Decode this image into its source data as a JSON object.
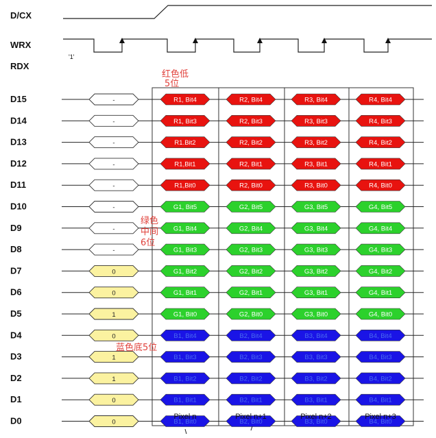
{
  "signals": {
    "dcx": "D/CX",
    "wrx": "WRX",
    "rdx": "RDX",
    "wrx_initial": "'1'"
  },
  "rows": [
    {
      "label": "D15",
      "lead": "-",
      "cells": [
        "R1, Bit4",
        "R2, Bit4",
        "R3, Bit4",
        "R4, Bit4"
      ],
      "color": "red"
    },
    {
      "label": "D14",
      "lead": "-",
      "cells": [
        "R1, Bit3",
        "R2, Bit3",
        "R3, Bit3",
        "R4, Bit3"
      ],
      "color": "red"
    },
    {
      "label": "D13",
      "lead": "-",
      "cells": [
        "R1.Bit2",
        "R2, Bit2",
        "R3, Bit2",
        "R4, Bit2"
      ],
      "color": "red"
    },
    {
      "label": "D12",
      "lead": "-",
      "cells": [
        "R1,Bit1",
        "R2, Bit1",
        "R3, Bit1",
        "R4, Bit1"
      ],
      "color": "red"
    },
    {
      "label": "D11",
      "lead": "-",
      "cells": [
        "R1,Bit0",
        "R2, Bit0",
        "R3, Bit0",
        "R4, Bit0"
      ],
      "color": "red"
    },
    {
      "label": "D10",
      "lead": "-",
      "cells": [
        "G1, Bit5",
        "G2, Bit5",
        "G3, Bit5",
        "G4, Bit5"
      ],
      "color": "green"
    },
    {
      "label": "D9",
      "lead": "-",
      "cells": [
        "G1, Bit4",
        "G2, Bit4",
        "G3, Bit4",
        "G4, Bit4"
      ],
      "color": "green"
    },
    {
      "label": "D8",
      "lead": "-",
      "cells": [
        "G1, Bit3",
        "G2, Bit3",
        "G3, Bit3",
        "G4, Bit3"
      ],
      "color": "green"
    },
    {
      "label": "D7",
      "lead": "0",
      "cells": [
        "G1, Bit2",
        "G2, Bit2",
        "G3, Bit2",
        "G4, Bit2"
      ],
      "color": "green"
    },
    {
      "label": "D6",
      "lead": "0",
      "cells": [
        "G1, Bit1",
        "G2, Bit1",
        "G3, Bit1",
        "G4, Bit1"
      ],
      "color": "green"
    },
    {
      "label": "D5",
      "lead": "1",
      "cells": [
        "G1, Bit0",
        "G2, Bit0",
        "G3, Bit0",
        "G4, Bit0"
      ],
      "color": "green"
    },
    {
      "label": "D4",
      "lead": "0",
      "cells": [
        "B1, Bit4",
        "B2, Bit4",
        "B3, Bit4",
        "B4, Bit4"
      ],
      "color": "blue"
    },
    {
      "label": "D3",
      "lead": "1",
      "cells": [
        "B1, Bit3",
        "B2, Bit3",
        "B3, Bit3",
        "B4, Bit3"
      ],
      "color": "blue"
    },
    {
      "label": "D2",
      "lead": "1",
      "cells": [
        "B1, Bit2",
        "B2, Bit2",
        "B3, Bit2",
        "B4, Bit2"
      ],
      "color": "blue"
    },
    {
      "label": "D1",
      "lead": "0",
      "cells": [
        "B1, Bit1",
        "B2, Bit1",
        "B3, Bit1",
        "B4, Bit1"
      ],
      "color": "blue"
    },
    {
      "label": "D0",
      "lead": "0",
      "cells": [
        "B1, Bit0",
        "B2, Bit0",
        "B3, Bit0",
        "B4, Bit0"
      ],
      "color": "blue"
    }
  ],
  "pixel_columns": [
    "Pixel n",
    "Pixel n+1",
    "Pixel n+2",
    "Pixel n+3"
  ],
  "annotations": {
    "red": [
      "红色低",
      "5位"
    ],
    "green": [
      "绿色",
      "中间",
      "6位"
    ],
    "blue": "蓝色底5位"
  },
  "colors": {
    "red": "#e8130f",
    "green": "#2cd12c",
    "blue": "#1a14e6",
    "lead_yellow": "#fbf2a0",
    "lead_white": "#ffffff",
    "annotation": "#e0403a",
    "line": "#222222"
  }
}
